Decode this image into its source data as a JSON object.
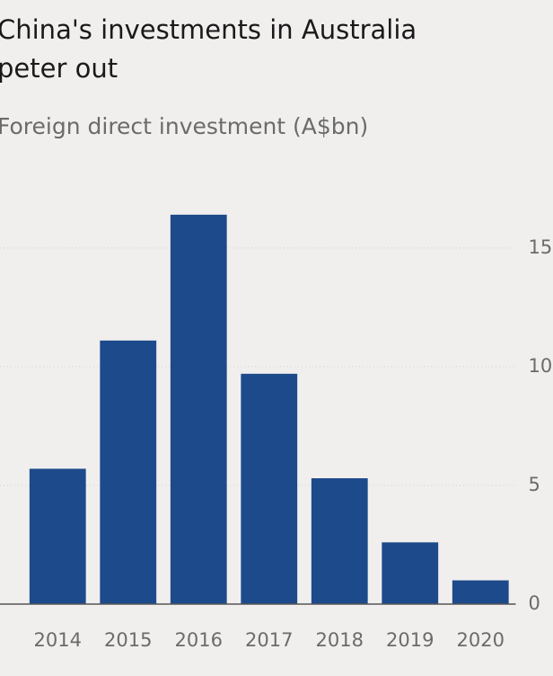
{
  "chart_data": {
    "type": "bar",
    "title_lines": [
      "China's investments in Australia",
      "peter out"
    ],
    "subtitle": "Foreign direct investment (A$bn)",
    "categories": [
      "2014",
      "2015",
      "2016",
      "2017",
      "2018",
      "2019",
      "2020"
    ],
    "values": [
      5.7,
      11.1,
      16.4,
      9.7,
      5.3,
      2.6,
      1.0
    ],
    "color": "#1d4a8a",
    "ylim": [
      0,
      17
    ],
    "yticks": [
      0,
      5,
      10,
      15
    ],
    "grid": true,
    "y_axis_side": "right"
  }
}
